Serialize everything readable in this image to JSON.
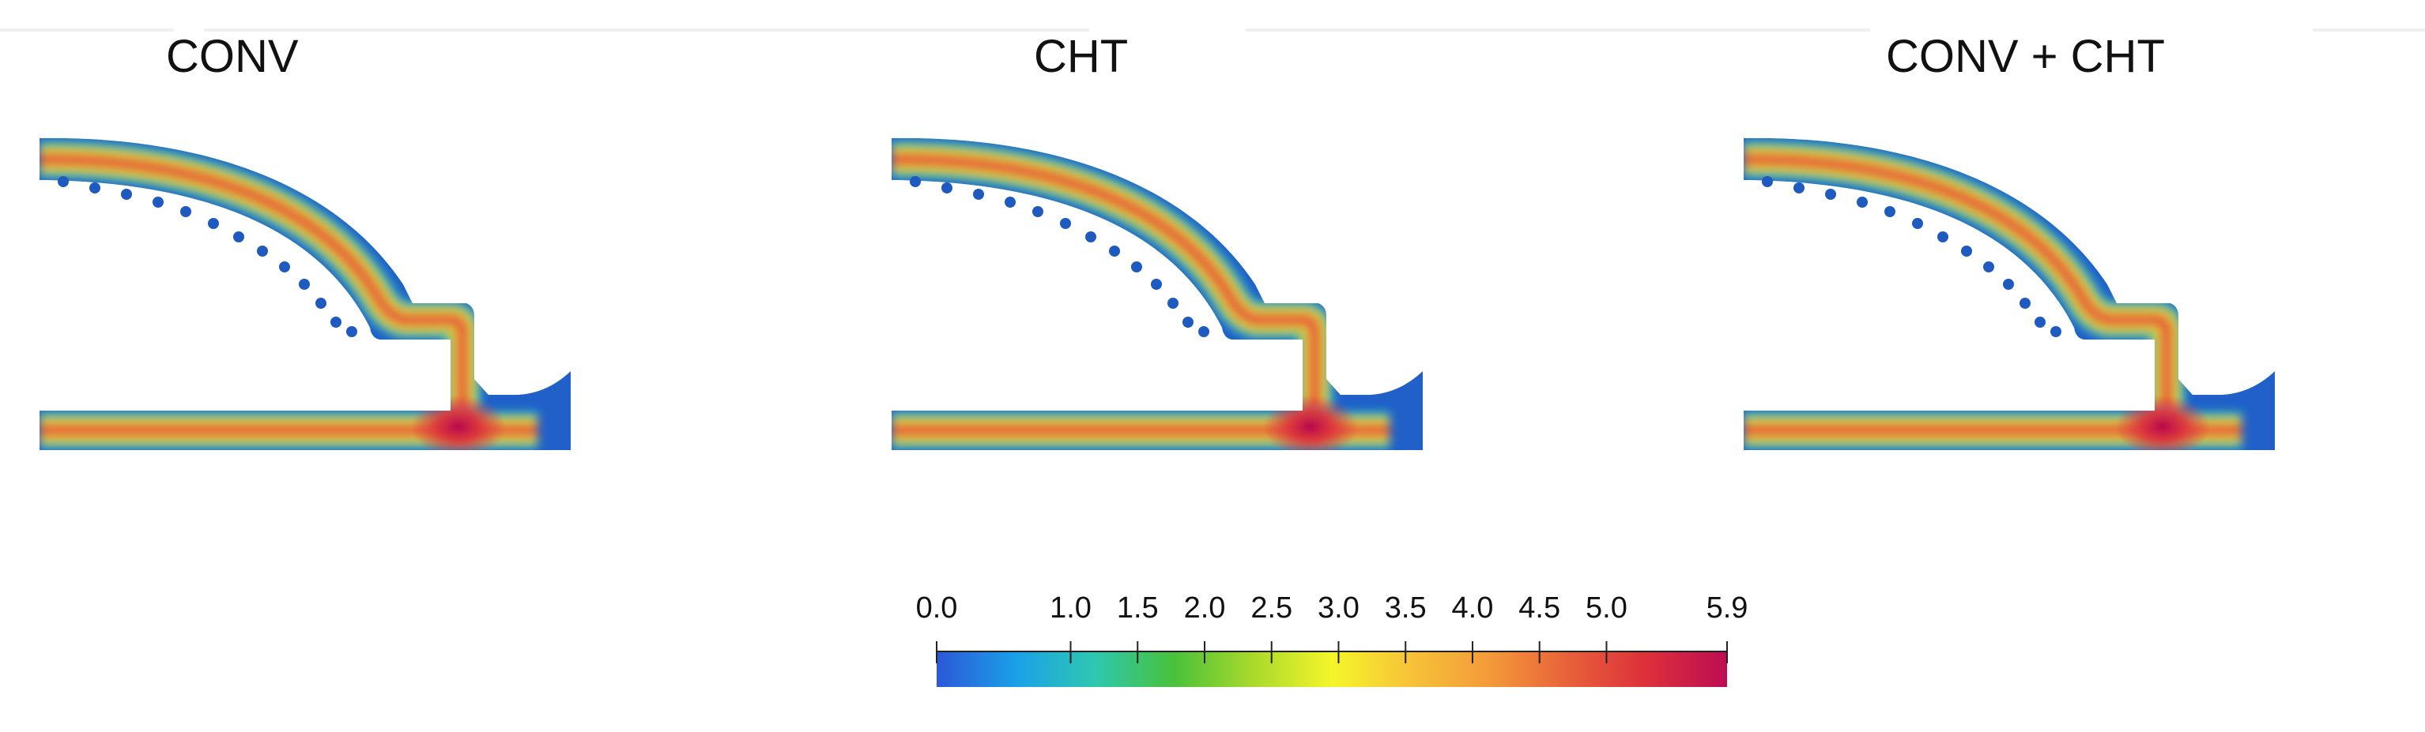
{
  "panels": [
    {
      "title": "CONV"
    },
    {
      "title": "CHT"
    },
    {
      "title": "CONV + CHT"
    }
  ],
  "colorbar": {
    "min": 0.0,
    "max": 5.9,
    "tick_labels": [
      "0.0",
      "1.0",
      "1.5",
      "2.0",
      "2.5",
      "3.0",
      "3.5",
      "4.0",
      "4.5",
      "5.0",
      "5.9"
    ],
    "tick_values": [
      0.0,
      1.0,
      1.5,
      2.0,
      2.5,
      3.0,
      3.5,
      4.0,
      4.5,
      5.0,
      5.9
    ],
    "colors": [
      "#2c58d8",
      "#1aa0e8",
      "#2ec7b0",
      "#49c13a",
      "#a9d92c",
      "#f5f52a",
      "#f7c238",
      "#f39a3a",
      "#e8603a",
      "#dc2f3c",
      "#bd0d52"
    ]
  }
}
